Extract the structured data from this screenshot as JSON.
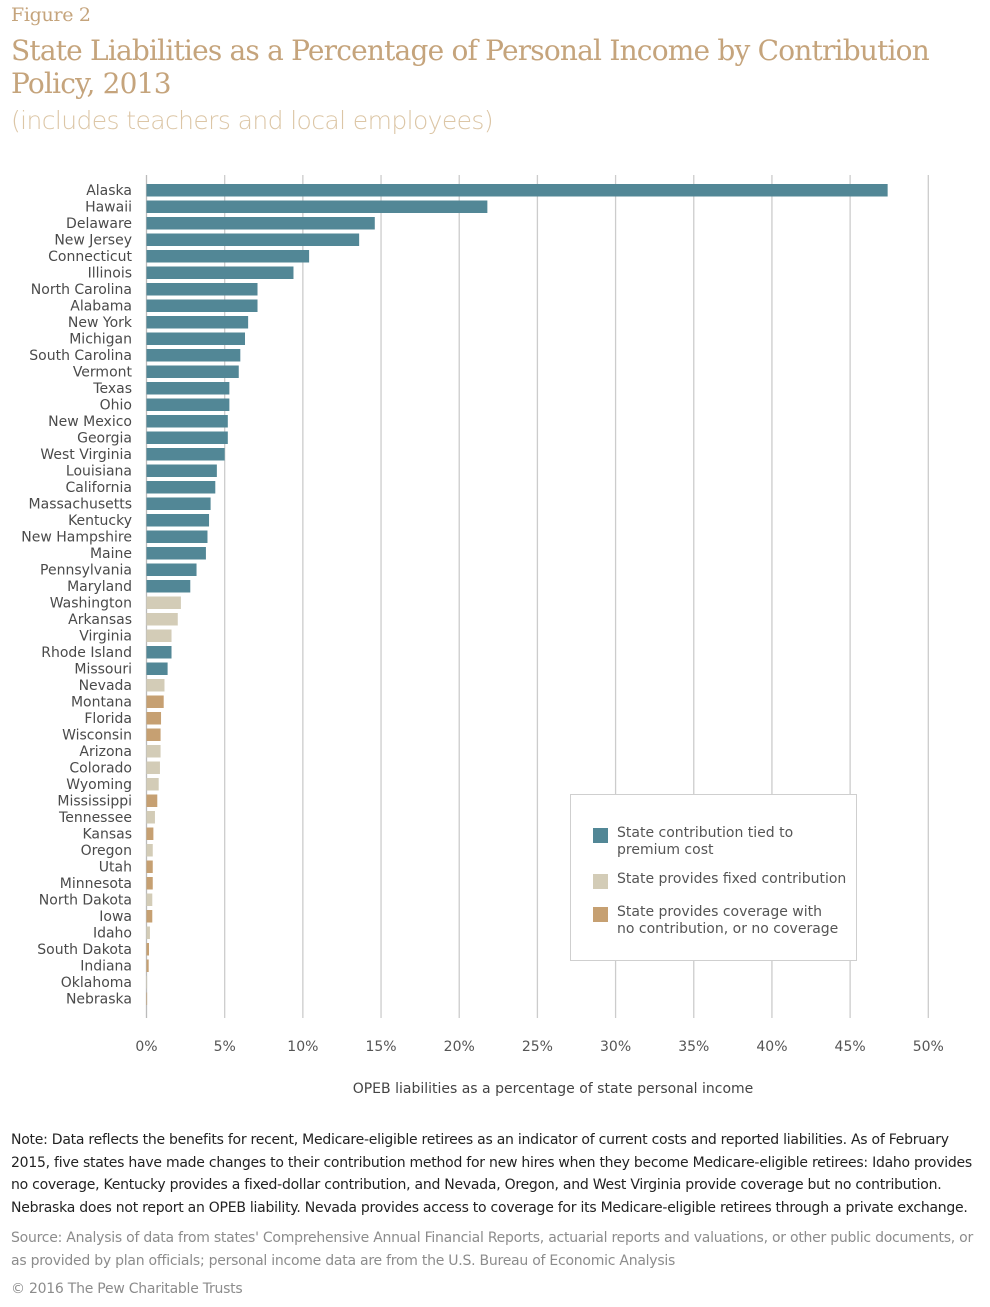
{
  "figure_label": "Figure 2",
  "title": "State Liabilities as a Percentage of Personal Income by Contribution Policy, 2013",
  "subtitle": "(includes teachers and local employees)",
  "colors": {
    "tied": "#528796",
    "fixed": "#d3ccb7",
    "none": "#c6a072",
    "title": "#c5a47c",
    "gridline": "#cccccc"
  },
  "chart_data": {
    "type": "bar",
    "orientation": "horizontal",
    "title": "State Liabilities as a Percentage of Personal Income by Contribution Policy, 2013",
    "subtitle": "(includes teachers and local employees)",
    "xlabel": "OPEB liabilities as a percentage of state personal income",
    "ylabel": "",
    "xlim": [
      0,
      50
    ],
    "xticks": [
      0,
      5,
      10,
      15,
      20,
      25,
      30,
      35,
      40,
      45,
      50
    ],
    "xtick_labels": [
      "0%",
      "5%",
      "10%",
      "15%",
      "20%",
      "25%",
      "30%",
      "35%",
      "40%",
      "45%",
      "50%"
    ],
    "grid": true,
    "legend_position": "bottom-right",
    "legend": [
      {
        "key": "tied",
        "label": "State contribution tied to premium cost"
      },
      {
        "key": "fixed",
        "label": "State provides fixed contribution"
      },
      {
        "key": "none",
        "label": "State provides coverage with no contribution, or no coverage"
      }
    ],
    "categories": [
      "Alaska",
      "Hawaii",
      "Delaware",
      "New Jersey",
      "Connecticut",
      "Illinois",
      "North Carolina",
      "Alabama",
      "New York",
      "Michigan",
      "South Carolina",
      "Vermont",
      "Texas",
      "Ohio",
      "New Mexico",
      "Georgia",
      "West Virginia",
      "Louisiana",
      "California",
      "Massachusetts",
      "Kentucky",
      "New Hampshire",
      "Maine",
      "Pennsylvania",
      "Maryland",
      "Washington",
      "Arkansas",
      "Virginia",
      "Rhode Island",
      "Missouri",
      "Nevada",
      "Montana",
      "Florida",
      "Wisconsin",
      "Arizona",
      "Colorado",
      "Wyoming",
      "Mississippi",
      "Tennessee",
      "Kansas",
      "Oregon",
      "Utah",
      "Minnesota",
      "North Dakota",
      "Iowa",
      "Idaho",
      "South Dakota",
      "Indiana",
      "Oklahoma",
      "Nebraska"
    ],
    "values": [
      47.4,
      21.8,
      14.6,
      13.6,
      10.4,
      9.4,
      7.1,
      7.1,
      6.5,
      6.3,
      6.0,
      5.9,
      5.3,
      5.3,
      5.2,
      5.2,
      5.0,
      4.5,
      4.4,
      4.1,
      4.0,
      3.9,
      3.8,
      3.2,
      2.8,
      2.2,
      2.0,
      1.6,
      1.6,
      1.35,
      1.15,
      1.1,
      0.93,
      0.9,
      0.9,
      0.86,
      0.78,
      0.69,
      0.54,
      0.44,
      0.4,
      0.4,
      0.4,
      0.37,
      0.37,
      0.22,
      0.16,
      0.14,
      0.01,
      0.03
    ],
    "policy": [
      "tied",
      "tied",
      "tied",
      "tied",
      "tied",
      "tied",
      "tied",
      "tied",
      "tied",
      "tied",
      "tied",
      "tied",
      "tied",
      "tied",
      "tied",
      "tied",
      "tied",
      "tied",
      "tied",
      "tied",
      "tied",
      "tied",
      "tied",
      "tied",
      "tied",
      "fixed",
      "fixed",
      "fixed",
      "tied",
      "tied",
      "fixed",
      "none",
      "none",
      "none",
      "fixed",
      "fixed",
      "fixed",
      "none",
      "fixed",
      "none",
      "fixed",
      "none",
      "none",
      "fixed",
      "none",
      "fixed",
      "none",
      "none",
      "fixed",
      "none"
    ]
  },
  "note": "Note: Data reflects the benefits for recent, Medicare-eligible retirees as an indicator of current costs and reported liabilities. As of February 2015, five states have made changes to their contribution method for new hires when they become Medicare-eligible retirees: Idaho provides no coverage, Kentucky provides a fixed-dollar contribution, and Nevada, Oregon, and West Virginia provide coverage but no contribution. Nebraska does not report an OPEB liability. Nevada provides access to coverage for its Medicare-eligible retirees through a private exchange.",
  "source": "Source: Analysis of data from states' Comprehensive Annual Financial Reports, actuarial reports and valuations, or other public documents, or as provided by plan officials; personal income data are from the U.S. Bureau of Economic Analysis",
  "copyright": "© 2016 The Pew Charitable Trusts"
}
